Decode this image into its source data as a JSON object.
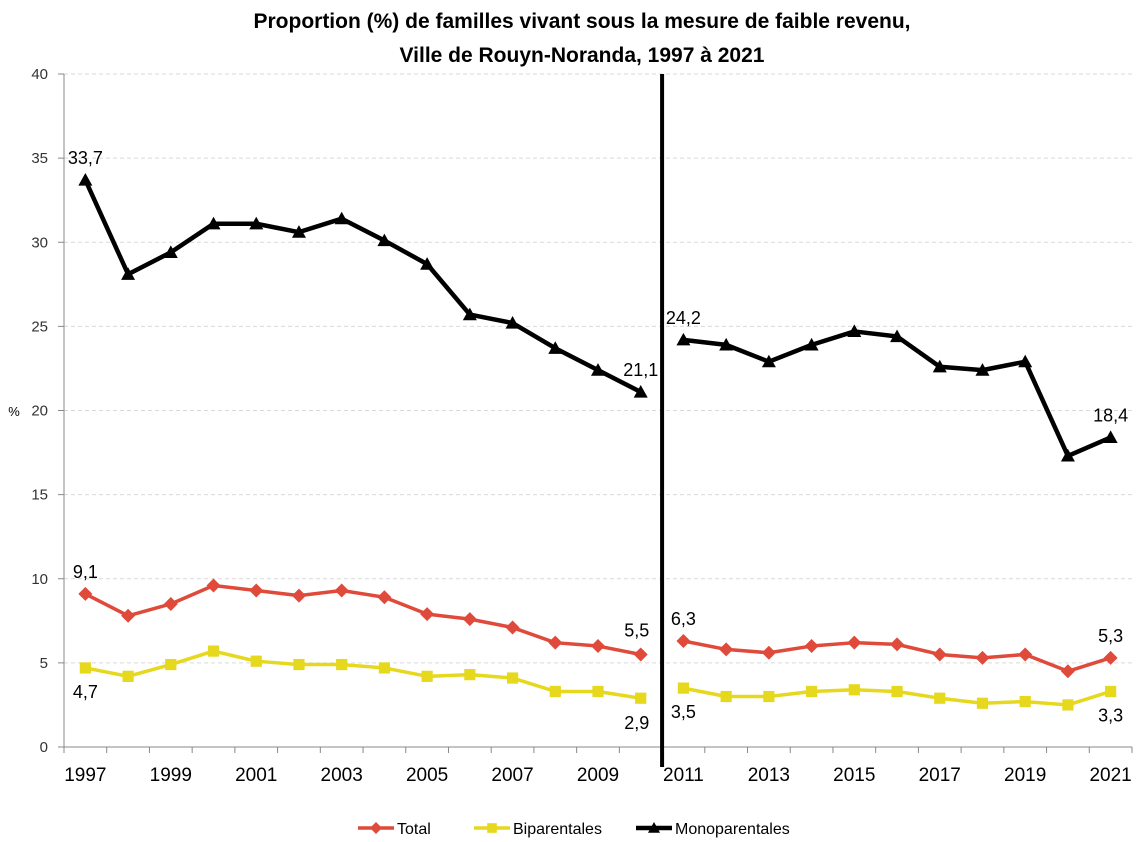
{
  "chart_data": {
    "type": "line",
    "title": "Proportion (%) de familles vivant sous la mesure de faible revenu,",
    "subtitle": "Ville de Rouyn-Noranda, 1997 à 2021",
    "ylabel": "%",
    "xlabel": "",
    "ylim": [
      0,
      40
    ],
    "yticks": [
      "0",
      "5",
      "10",
      "15",
      "20",
      "25",
      "30",
      "35",
      "40"
    ],
    "grid": true,
    "legend_position": "bottom",
    "break_after": "2010",
    "x": [
      "1997",
      "1998",
      "1999",
      "2000",
      "2001",
      "2002",
      "2003",
      "2004",
      "2005",
      "2006",
      "2007",
      "2008",
      "2009",
      "2010",
      "2011",
      "2012",
      "2013",
      "2014",
      "2015",
      "2016",
      "2017",
      "2018",
      "2019",
      "2020",
      "2021"
    ],
    "x_tick_labels": [
      "1997",
      "1999",
      "2001",
      "2003",
      "2005",
      "2007",
      "2009",
      "2011",
      "2013",
      "2015",
      "2017",
      "2019",
      "2021"
    ],
    "series": [
      {
        "name": "Total",
        "color": "#e04a3a",
        "marker": "diamond",
        "values": [
          9.1,
          7.8,
          8.5,
          9.6,
          9.3,
          9.0,
          9.3,
          8.9,
          7.9,
          7.6,
          7.1,
          6.2,
          6.0,
          5.5,
          6.3,
          5.8,
          5.6,
          6.0,
          6.2,
          6.1,
          5.5,
          5.3,
          5.5,
          4.5,
          5.3
        ]
      },
      {
        "name": "Biparentales",
        "color": "#e6d81c",
        "marker": "square",
        "values": [
          4.7,
          4.2,
          4.9,
          5.7,
          5.1,
          4.9,
          4.9,
          4.7,
          4.2,
          4.3,
          4.1,
          3.3,
          3.3,
          2.9,
          3.5,
          3.0,
          3.0,
          3.3,
          3.4,
          3.3,
          2.9,
          2.6,
          2.7,
          2.5,
          3.3
        ]
      },
      {
        "name": "Monoparentales",
        "color": "#000000",
        "marker": "triangle",
        "values": [
          33.7,
          28.1,
          29.4,
          31.1,
          31.1,
          30.6,
          31.4,
          30.1,
          28.7,
          25.7,
          25.2,
          23.7,
          22.4,
          21.1,
          24.2,
          23.9,
          22.9,
          23.9,
          24.7,
          24.4,
          22.6,
          22.4,
          22.9,
          17.3,
          18.4
        ]
      }
    ],
    "data_labels": [
      {
        "series": 0,
        "index": 0,
        "text": "9,1",
        "pos": "above"
      },
      {
        "series": 0,
        "index": 13,
        "text": "5,5",
        "pos": "above-left"
      },
      {
        "series": 0,
        "index": 14,
        "text": "6,3",
        "pos": "above"
      },
      {
        "series": 0,
        "index": 24,
        "text": "5,3",
        "pos": "above"
      },
      {
        "series": 1,
        "index": 0,
        "text": "4,7",
        "pos": "below"
      },
      {
        "series": 1,
        "index": 13,
        "text": "2,9",
        "pos": "below-left"
      },
      {
        "series": 1,
        "index": 14,
        "text": "3,5",
        "pos": "below"
      },
      {
        "series": 1,
        "index": 24,
        "text": "3,3",
        "pos": "below"
      },
      {
        "series": 2,
        "index": 0,
        "text": "33,7",
        "pos": "above"
      },
      {
        "series": 2,
        "index": 13,
        "text": "21,1",
        "pos": "above"
      },
      {
        "series": 2,
        "index": 14,
        "text": "24,2",
        "pos": "above"
      },
      {
        "series": 2,
        "index": 24,
        "text": "18,4",
        "pos": "above"
      }
    ]
  }
}
